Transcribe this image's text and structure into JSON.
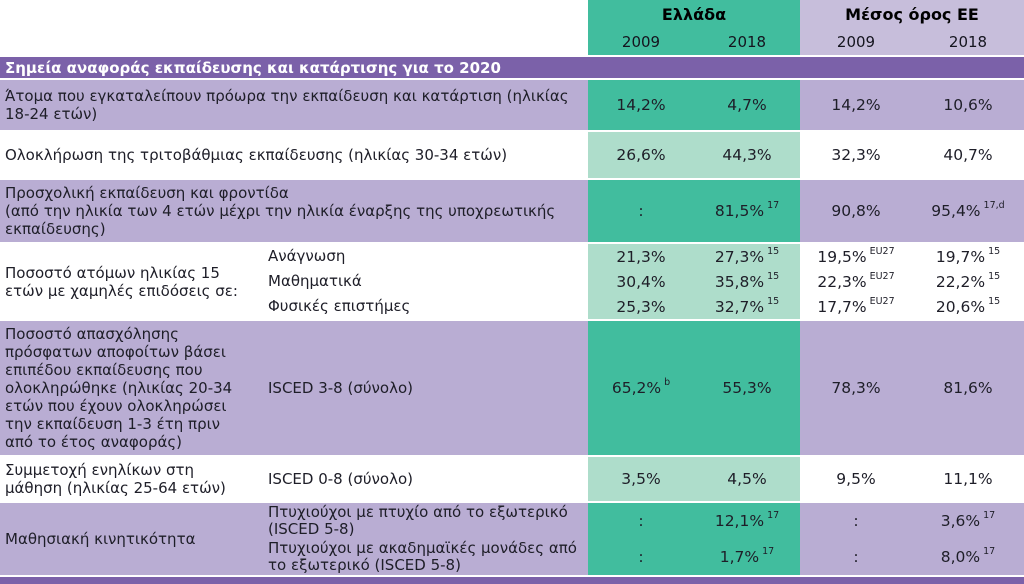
{
  "ui": {
    "header": {
      "greece_label": "Ελλάδα",
      "eu_label": "Μέσος όρος ΕΕ",
      "years": [
        "2009",
        "2018",
        "2009",
        "2018"
      ]
    },
    "section_title": "Σημεία αναφοράς εκπαίδευσης και κατάρτισης για το 2020",
    "rows": [
      {
        "label": "Άτομα που εγκαταλείπουν πρόωρα την εκπαίδευση και κατάρτιση (ηλικίας 18-24 ετών)",
        "cells": [
          {
            "v": "14,2%"
          },
          {
            "v": "4,7%"
          },
          {
            "v": "14,2%"
          },
          {
            "v": "10,6%"
          }
        ]
      },
      {
        "label": "Ολοκλήρωση της τριτοβάθμιας εκπαίδευσης (ηλικίας 30-34 ετών)",
        "cells": [
          {
            "v": "26,6%"
          },
          {
            "v": "44,3%"
          },
          {
            "v": "32,3%"
          },
          {
            "v": "40,7%"
          }
        ]
      },
      {
        "label": "Προσχολική εκπαίδευση και φροντίδα\n(από την ηλικία των 4 ετών μέχρι την ηλικία έναρξης της υποχρεωτικής εκπαίδευσης)",
        "cells": [
          {
            "v": ":"
          },
          {
            "v": "81,5%",
            "sup": "17"
          },
          {
            "v": "90,8%"
          },
          {
            "v": "95,4%",
            "sup": "17,d"
          }
        ]
      },
      {
        "label": "Ποσοστό ατόμων ηλικίας 15 ετών με χαμηλές επιδόσεις σε:",
        "subrows": [
          {
            "sublabel": "Ανάγνωση",
            "cells": [
              {
                "v": "21,3%"
              },
              {
                "v": "27,3%",
                "sup": "15"
              },
              {
                "v": "19,5%",
                "sup": "EU27"
              },
              {
                "v": "19,7%",
                "sup": "15"
              }
            ]
          },
          {
            "sublabel": "Μαθηματικά",
            "cells": [
              {
                "v": "30,4%"
              },
              {
                "v": "35,8%",
                "sup": "15"
              },
              {
                "v": "22,3%",
                "sup": "EU27"
              },
              {
                "v": "22,2%",
                "sup": "15"
              }
            ]
          },
          {
            "sublabel": "Φυσικές επιστήμες",
            "cells": [
              {
                "v": "25,3%"
              },
              {
                "v": "32,7%",
                "sup": "15"
              },
              {
                "v": "17,7%",
                "sup": "EU27"
              },
              {
                "v": "20,6%",
                "sup": "15"
              }
            ]
          }
        ]
      },
      {
        "label": "Ποσοστό απασχόλησης πρόσφατων αποφοίτων βάσει επιπέδου εκπαίδευσης που ολοκληρώθηκε (ηλικίας 20-34 ετών που έχουν ολοκληρώσει την εκπαίδευση 1-3 έτη πριν από το έτος αναφοράς)",
        "sublabel": "ISCED 3-8 (σύνολο)",
        "cells": [
          {
            "v": "65,2%",
            "sup": "b"
          },
          {
            "v": "55,3%"
          },
          {
            "v": "78,3%"
          },
          {
            "v": "81,6%"
          }
        ]
      },
      {
        "label": "Συμμετοχή ενηλίκων στη μάθηση (ηλικίας 25-64 ετών)",
        "sublabel": "ISCED 0-8 (σύνολο)",
        "cells": [
          {
            "v": "3,5%"
          },
          {
            "v": "4,5%"
          },
          {
            "v": "9,5%"
          },
          {
            "v": "11,1%"
          }
        ]
      },
      {
        "label": "Μαθησιακή κινητικότητα",
        "subrows": [
          {
            "sublabel": "Πτυχιούχοι με πτυχίο από το εξωτερικό (ISCED 5-8)",
            "cells": [
              {
                "v": ":"
              },
              {
                "v": "12,1%",
                "sup": "17"
              },
              {
                "v": ":"
              },
              {
                "v": "3,6%",
                "sup": "17"
              }
            ]
          },
          {
            "sublabel": "Πτυχιούχοι με ακαδημαϊκές μονάδες από το εξωτερικό (ISCED 5-8)",
            "cells": [
              {
                "v": ":"
              },
              {
                "v": "1,7%",
                "sup": "17"
              },
              {
                "v": ":"
              },
              {
                "v": "8,0%",
                "sup": "17"
              }
            ]
          }
        ]
      }
    ],
    "colors": {
      "greece_dark": "#41bd9e",
      "greece_light": "#aeddcb",
      "purple_row": "#b9add3",
      "purple_header": "#c7bedb",
      "section_bar": "#7b61a9"
    }
  },
  "chart_data": {
    "type": "table",
    "title": "Σημεία αναφοράς εκπαίδευσης και κατάρτισης για το 2020",
    "column_groups": [
      "Ελλάδα",
      "Μέσος όρος ΕΕ"
    ],
    "columns": [
      "Ελλάδα 2009",
      "Ελλάδα 2018",
      "Μέσος όρος ΕΕ 2009",
      "Μέσος όρος ΕΕ 2018"
    ],
    "rows": [
      {
        "indicator": "Άτομα που εγκαταλείπουν πρόωρα την εκπαίδευση και κατάρτιση (ηλικίας 18-24 ετών)",
        "values": [
          "14,2%",
          "4,7%",
          "14,2%",
          "10,6%"
        ]
      },
      {
        "indicator": "Ολοκλήρωση της τριτοβάθμιας εκπαίδευσης (ηλικίας 30-34 ετών)",
        "values": [
          "26,6%",
          "44,3%",
          "32,3%",
          "40,7%"
        ]
      },
      {
        "indicator": "Προσχολική εκπαίδευση και φροντίδα (από την ηλικία των 4 ετών μέχρι την ηλικία έναρξης της υποχρεωτικής εκπαίδευσης)",
        "values": [
          ":",
          "81,5% (17)",
          "90,8%",
          "95,4% (17,d)"
        ]
      },
      {
        "indicator": "Ποσοστό ατόμων ηλικίας 15 ετών με χαμηλές επιδόσεις σε: Ανάγνωση",
        "values": [
          "21,3%",
          "27,3% (15)",
          "19,5% (EU27)",
          "19,7% (15)"
        ]
      },
      {
        "indicator": "Ποσοστό ατόμων ηλικίας 15 ετών με χαμηλές επιδόσεις σε: Μαθηματικά",
        "values": [
          "30,4%",
          "35,8% (15)",
          "22,3% (EU27)",
          "22,2% (15)"
        ]
      },
      {
        "indicator": "Ποσοστό ατόμων ηλικίας 15 ετών με χαμηλές επιδόσεις σε: Φυσικές επιστήμες",
        "values": [
          "25,3%",
          "32,7% (15)",
          "17,7% (EU27)",
          "20,6% (15)"
        ]
      },
      {
        "indicator": "Ποσοστό απασχόλησης πρόσφατων αποφοίτων βάσει επιπέδου εκπαίδευσης που ολοκληρώθηκε (ηλικίας 20-34 ετών που έχουν ολοκληρώσει την εκπαίδευση 1-3 έτη πριν από το έτος αναφοράς) — ISCED 3-8 (σύνολο)",
        "values": [
          "65,2% (b)",
          "55,3%",
          "78,3%",
          "81,6%"
        ]
      },
      {
        "indicator": "Συμμετοχή ενηλίκων στη μάθηση (ηλικίας 25-64 ετών) — ISCED 0-8 (σύνολο)",
        "values": [
          "3,5%",
          "4,5%",
          "9,5%",
          "11,1%"
        ]
      },
      {
        "indicator": "Μαθησιακή κινητικότητα — Πτυχιούχοι με πτυχίο από το εξωτερικό (ISCED 5-8)",
        "values": [
          ":",
          "12,1% (17)",
          ":",
          "3,6% (17)"
        ]
      },
      {
        "indicator": "Μαθησιακή κινητικότητα — Πτυχιούχοι με ακαδημαϊκές μονάδες από το εξωτερικό (ISCED 5-8)",
        "values": [
          ":",
          "1,7% (17)",
          ":",
          "8,0% (17)"
        ]
      }
    ]
  }
}
